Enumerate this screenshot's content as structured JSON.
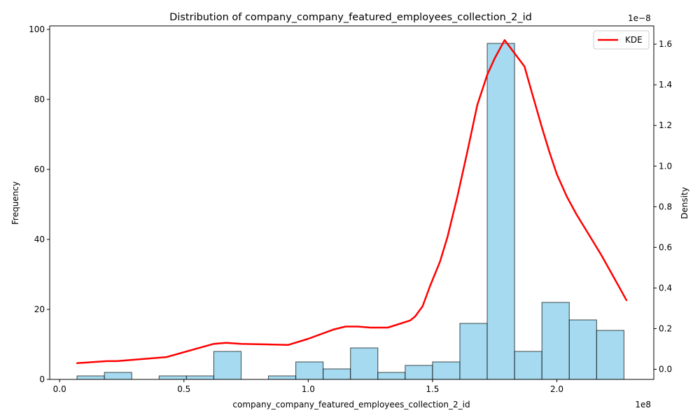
{
  "chart_data": {
    "type": "bar",
    "title": "Distribution of company_company_featured_employees_collection_2_id",
    "xlabel": "company_company_featured_employees_collection_2_id",
    "ylabel": "Frequency",
    "y2label": "Density",
    "x_exponent_label": "1e8",
    "y2_exponent_label": "1e−8",
    "xlim": [
      -0.04,
      2.39
    ],
    "ylim": [
      0,
      101
    ],
    "y2lim": [
      -0.05,
      1.69
    ],
    "x_ticks": [
      0.0,
      0.5,
      1.0,
      1.5,
      2.0
    ],
    "x_tick_labels": [
      "0.0",
      "0.5",
      "1.0",
      "1.5",
      "2.0"
    ],
    "y_ticks": [
      0,
      20,
      40,
      60,
      80,
      100
    ],
    "y_tick_labels": [
      "0",
      "20",
      "40",
      "60",
      "80",
      "100"
    ],
    "y2_ticks": [
      0.0,
      0.2,
      0.4,
      0.6,
      0.8,
      1.0,
      1.2,
      1.4,
      1.6
    ],
    "y2_tick_labels": [
      "0.0",
      "0.2",
      "0.4",
      "0.6",
      "0.8",
      "1.0",
      "1.2",
      "1.4",
      "1.6"
    ],
    "bin_edges": [
      0.07,
      0.18,
      0.29,
      0.4,
      0.51,
      0.62,
      0.73,
      0.84,
      0.95,
      1.06,
      1.17,
      1.28,
      1.39,
      1.5,
      1.61,
      1.72,
      1.83,
      1.94,
      2.05,
      2.16,
      2.27
    ],
    "counts": [
      1,
      2,
      0,
      1,
      1,
      8,
      0,
      1,
      5,
      3,
      9,
      2,
      4,
      5,
      16,
      96,
      8,
      22,
      17,
      14
    ],
    "bar_color": "#87CEEB",
    "bar_edge_color": "#000000",
    "legend": {
      "position": "top-right",
      "entries": [
        {
          "label": "KDE",
          "color": "#ff0000"
        }
      ]
    },
    "kde": {
      "name": "KDE",
      "color": "#ff0000",
      "x": [
        0.07,
        0.19,
        0.23,
        0.43,
        0.62,
        0.67,
        0.73,
        0.92,
        1.0,
        1.1,
        1.15,
        1.2,
        1.25,
        1.32,
        1.41,
        1.43,
        1.46,
        1.49,
        1.53,
        1.56,
        1.6,
        1.64,
        1.68,
        1.72,
        1.75,
        1.79,
        1.87,
        1.9,
        1.94,
        1.97,
        2.0,
        2.04,
        2.08,
        2.13,
        2.18,
        2.23,
        2.28
      ],
      "y": [
        0.03,
        0.04,
        0.04,
        0.06,
        0.125,
        0.13,
        0.125,
        0.12,
        0.15,
        0.195,
        0.21,
        0.21,
        0.205,
        0.205,
        0.24,
        0.26,
        0.31,
        0.41,
        0.53,
        0.65,
        0.85,
        1.07,
        1.3,
        1.45,
        1.53,
        1.62,
        1.49,
        1.36,
        1.19,
        1.07,
        0.96,
        0.85,
        0.76,
        0.66,
        0.56,
        0.45,
        0.34
      ]
    }
  }
}
